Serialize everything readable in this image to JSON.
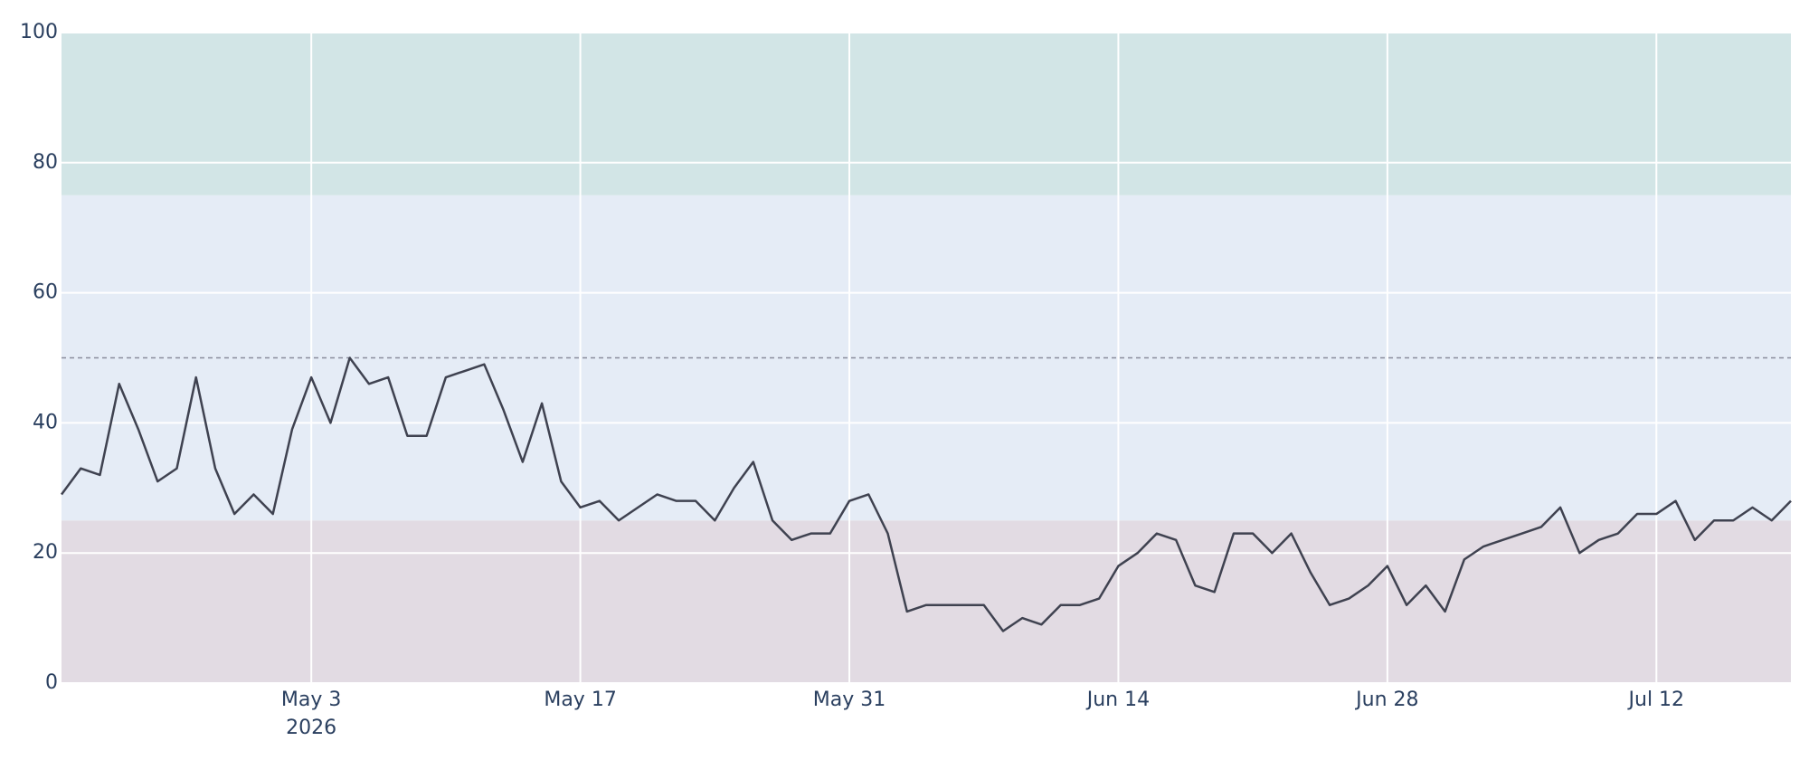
{
  "chart_data": {
    "type": "line",
    "x": [
      "2026-04-20",
      "2026-04-21",
      "2026-04-22",
      "2026-04-23",
      "2026-04-24",
      "2026-04-25",
      "2026-04-26",
      "2026-04-27",
      "2026-04-28",
      "2026-04-29",
      "2026-04-30",
      "2026-05-01",
      "2026-05-02",
      "2026-05-03",
      "2026-05-04",
      "2026-05-05",
      "2026-05-06",
      "2026-05-07",
      "2026-05-08",
      "2026-05-09",
      "2026-05-10",
      "2026-05-11",
      "2026-05-12",
      "2026-05-13",
      "2026-05-14",
      "2026-05-15",
      "2026-05-16",
      "2026-05-17",
      "2026-05-18",
      "2026-05-19",
      "2026-05-20",
      "2026-05-21",
      "2026-05-22",
      "2026-05-23",
      "2026-05-24",
      "2026-05-25",
      "2026-05-26",
      "2026-05-27",
      "2026-05-28",
      "2026-05-29",
      "2026-05-30",
      "2026-05-31",
      "2026-06-01",
      "2026-06-02",
      "2026-06-03",
      "2026-06-04",
      "2026-06-05",
      "2026-06-06",
      "2026-06-07",
      "2026-06-08",
      "2026-06-09",
      "2026-06-10",
      "2026-06-11",
      "2026-06-12",
      "2026-06-13",
      "2026-06-14",
      "2026-06-15",
      "2026-06-16",
      "2026-06-17",
      "2026-06-18",
      "2026-06-19",
      "2026-06-20",
      "2026-06-21",
      "2026-06-22",
      "2026-06-23",
      "2026-06-24",
      "2026-06-25",
      "2026-06-26",
      "2026-06-27",
      "2026-06-28",
      "2026-06-29",
      "2026-06-30",
      "2026-07-01",
      "2026-07-02",
      "2026-07-03",
      "2026-07-04",
      "2026-07-05",
      "2026-07-06",
      "2026-07-07",
      "2026-07-08",
      "2026-07-09",
      "2026-07-10",
      "2026-07-11",
      "2026-07-12",
      "2026-07-13",
      "2026-07-14",
      "2026-07-15",
      "2026-07-16",
      "2026-07-17",
      "2026-07-18",
      "2026-07-19"
    ],
    "values": [
      29,
      33,
      32,
      46,
      39,
      31,
      33,
      47,
      33,
      26,
      29,
      26,
      39,
      47,
      40,
      50,
      46,
      47,
      38,
      38,
      47,
      48,
      49,
      42,
      34,
      43,
      31,
      27,
      28,
      25,
      27,
      29,
      28,
      28,
      25,
      30,
      34,
      25,
      22,
      23,
      23,
      28,
      29,
      23,
      11,
      12,
      12,
      12,
      12,
      8,
      10,
      9,
      12,
      12,
      13,
      18,
      20,
      23,
      22,
      15,
      14,
      23,
      23,
      20,
      23,
      17,
      12,
      13,
      15,
      18,
      12,
      15,
      11,
      19,
      21,
      22,
      23,
      24,
      27,
      20,
      22,
      23,
      26,
      26,
      28,
      22,
      25,
      25,
      27,
      25,
      28
    ],
    "color": "#3f4250",
    "xlim": [
      "2026-04-20",
      "2026-07-19"
    ],
    "xticks": [
      {
        "value": "2026-05-03",
        "label": "May 3"
      },
      {
        "value": "2026-05-17",
        "label": "May 17"
      },
      {
        "value": "2026-05-31",
        "label": "May 31"
      },
      {
        "value": "2026-06-14",
        "label": "Jun 14"
      },
      {
        "value": "2026-06-28",
        "label": "Jun 28"
      },
      {
        "value": "2026-07-12",
        "label": "Jul 12"
      }
    ],
    "xtick_year": {
      "value": "2026-05-03",
      "label": "2026"
    },
    "ylim": [
      0,
      100
    ],
    "yticks": [
      0,
      20,
      40,
      60,
      80,
      100
    ],
    "grid": true,
    "bands": [
      {
        "y0": 0,
        "y1": 25,
        "color": "#e2dbe3"
      },
      {
        "y0": 25,
        "y1": 75,
        "color": "#e5ecf6"
      },
      {
        "y0": 75,
        "y1": 100,
        "color": "#d2e5e6"
      }
    ],
    "reference_line": {
      "value": 50,
      "color": "#8a8d9c"
    }
  }
}
